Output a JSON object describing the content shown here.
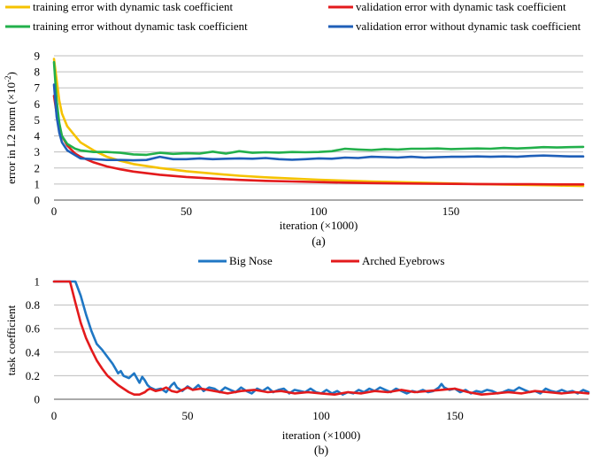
{
  "chart_data": [
    {
      "type": "line",
      "caption": "(a)",
      "xlabel": "iteration (×1000)",
      "ylabel": "error in L2 norm (×10",
      "ylabel_sup": "-2",
      "ylabel_close": ")",
      "xlim": [
        0,
        200
      ],
      "ylim": [
        0,
        9
      ],
      "xticks": [
        0,
        50,
        100,
        150
      ],
      "yticks": [
        0,
        1,
        2,
        3,
        4,
        5,
        6,
        7,
        8,
        9
      ],
      "grid": "horizontal",
      "legend_position": "top",
      "series": [
        {
          "name": "training error with dynamic task coefficient",
          "color": "#f5c200",
          "x": [
            0,
            1,
            2,
            3,
            5,
            8,
            10,
            15,
            20,
            25,
            30,
            40,
            50,
            60,
            70,
            80,
            90,
            100,
            110,
            120,
            130,
            140,
            150,
            160,
            170,
            180,
            190,
            200
          ],
          "y": [
            8.8,
            7.5,
            6.2,
            5.4,
            4.6,
            4.0,
            3.6,
            3.1,
            2.7,
            2.45,
            2.25,
            2.0,
            1.8,
            1.65,
            1.52,
            1.42,
            1.34,
            1.27,
            1.21,
            1.16,
            1.12,
            1.08,
            1.04,
            1.0,
            0.97,
            0.94,
            0.91,
            0.88
          ]
        },
        {
          "name": "validation error with dynamic task coefficient",
          "color": "#e31a1c",
          "x": [
            0,
            1,
            2,
            3,
            5,
            8,
            10,
            15,
            20,
            25,
            30,
            40,
            50,
            60,
            70,
            80,
            90,
            100,
            110,
            120,
            130,
            140,
            150,
            160,
            170,
            180,
            190,
            200
          ],
          "y": [
            6.5,
            5.4,
            4.6,
            4.0,
            3.4,
            2.9,
            2.7,
            2.35,
            2.1,
            1.92,
            1.78,
            1.58,
            1.44,
            1.34,
            1.26,
            1.2,
            1.16,
            1.12,
            1.09,
            1.06,
            1.04,
            1.02,
            1.01,
            1.0,
            0.99,
            0.99,
            0.98,
            0.98
          ]
        },
        {
          "name": "training error without dynamic task coefficient",
          "color": "#22b04b",
          "x": [
            0,
            1,
            2,
            3,
            5,
            8,
            10,
            15,
            20,
            25,
            30,
            35,
            40,
            45,
            50,
            55,
            60,
            65,
            70,
            75,
            80,
            85,
            90,
            95,
            100,
            105,
            110,
            115,
            120,
            125,
            130,
            135,
            140,
            145,
            150,
            155,
            160,
            165,
            170,
            175,
            180,
            185,
            190,
            195,
            200
          ],
          "y": [
            8.6,
            6.2,
            4.8,
            4.0,
            3.5,
            3.2,
            3.1,
            3.0,
            3.0,
            2.95,
            2.85,
            2.82,
            2.95,
            2.88,
            2.92,
            2.9,
            3.02,
            2.9,
            3.05,
            2.95,
            2.98,
            2.96,
            3.0,
            2.98,
            3.0,
            3.05,
            3.2,
            3.15,
            3.12,
            3.18,
            3.15,
            3.2,
            3.2,
            3.22,
            3.18,
            3.2,
            3.22,
            3.2,
            3.25,
            3.22,
            3.25,
            3.3,
            3.28,
            3.3,
            3.32
          ]
        },
        {
          "name": "validation error without dynamic task coefficient",
          "color": "#1f5fb8",
          "x": [
            0,
            1,
            2,
            3,
            5,
            8,
            10,
            15,
            20,
            25,
            30,
            35,
            40,
            45,
            50,
            55,
            60,
            65,
            70,
            75,
            80,
            85,
            90,
            95,
            100,
            105,
            110,
            115,
            120,
            125,
            130,
            135,
            140,
            145,
            150,
            155,
            160,
            165,
            170,
            175,
            180,
            185,
            190,
            195,
            200
          ],
          "y": [
            7.2,
            5.2,
            4.2,
            3.6,
            3.1,
            2.8,
            2.6,
            2.55,
            2.5,
            2.5,
            2.48,
            2.5,
            2.7,
            2.55,
            2.55,
            2.6,
            2.55,
            2.58,
            2.6,
            2.58,
            2.62,
            2.55,
            2.52,
            2.55,
            2.6,
            2.58,
            2.65,
            2.62,
            2.7,
            2.68,
            2.65,
            2.7,
            2.65,
            2.68,
            2.7,
            2.7,
            2.72,
            2.7,
            2.72,
            2.7,
            2.75,
            2.78,
            2.75,
            2.72,
            2.72
          ]
        }
      ]
    },
    {
      "type": "line",
      "caption": "(b)",
      "xlabel": "iteration (×1000)",
      "ylabel": "task coefficient",
      "xlim": [
        0,
        200
      ],
      "ylim": [
        0,
        1
      ],
      "xticks": [
        0,
        50,
        100,
        150
      ],
      "yticks": [
        0,
        0.2,
        0.4,
        0.6,
        0.8,
        1
      ],
      "ytick_labels": [
        "0",
        "0.2",
        "0.4",
        "0.6",
        "0.8",
        "1"
      ],
      "grid": "horizontal",
      "legend_position": "top",
      "series": [
        {
          "name": "Big Nose",
          "color": "#1f77c4",
          "x": [
            0,
            3,
            6,
            8,
            10,
            12,
            14,
            16,
            18,
            20,
            22,
            24,
            25,
            26,
            28,
            30,
            32,
            33,
            34,
            35,
            36,
            38,
            40,
            42,
            44,
            45,
            46,
            48,
            50,
            52,
            54,
            56,
            58,
            60,
            62,
            64,
            66,
            68,
            70,
            72,
            74,
            76,
            78,
            80,
            82,
            84,
            86,
            88,
            90,
            92,
            94,
            96,
            98,
            100,
            102,
            104,
            106,
            108,
            110,
            112,
            114,
            116,
            118,
            120,
            122,
            124,
            126,
            128,
            130,
            132,
            134,
            136,
            138,
            140,
            142,
            144,
            145,
            146,
            148,
            150,
            152,
            154,
            156,
            158,
            160,
            162,
            164,
            166,
            168,
            170,
            172,
            174,
            176,
            178,
            180,
            182,
            184,
            186,
            188,
            190,
            192,
            194,
            196,
            198,
            200
          ],
          "y": [
            1.0,
            1.0,
            1.0,
            1.0,
            0.88,
            0.72,
            0.58,
            0.47,
            0.42,
            0.36,
            0.3,
            0.22,
            0.24,
            0.2,
            0.18,
            0.22,
            0.14,
            0.19,
            0.16,
            0.12,
            0.1,
            0.08,
            0.09,
            0.06,
            0.12,
            0.14,
            0.1,
            0.07,
            0.11,
            0.08,
            0.12,
            0.07,
            0.1,
            0.09,
            0.06,
            0.1,
            0.08,
            0.06,
            0.1,
            0.07,
            0.05,
            0.09,
            0.07,
            0.1,
            0.06,
            0.08,
            0.09,
            0.05,
            0.08,
            0.07,
            0.06,
            0.09,
            0.06,
            0.05,
            0.08,
            0.05,
            0.07,
            0.04,
            0.06,
            0.05,
            0.08,
            0.06,
            0.09,
            0.07,
            0.1,
            0.08,
            0.06,
            0.09,
            0.07,
            0.05,
            0.07,
            0.06,
            0.08,
            0.06,
            0.07,
            0.1,
            0.13,
            0.1,
            0.08,
            0.09,
            0.06,
            0.08,
            0.05,
            0.07,
            0.06,
            0.08,
            0.07,
            0.05,
            0.06,
            0.08,
            0.07,
            0.1,
            0.08,
            0.06,
            0.07,
            0.05,
            0.09,
            0.07,
            0.06,
            0.08,
            0.06,
            0.07,
            0.05,
            0.08,
            0.06
          ]
        },
        {
          "name": "Arched Eyebrows",
          "color": "#e31a1c",
          "x": [
            0,
            4,
            6,
            8,
            10,
            12,
            14,
            16,
            18,
            20,
            22,
            24,
            26,
            28,
            30,
            32,
            34,
            35,
            36,
            38,
            40,
            42,
            44,
            46,
            48,
            50,
            52,
            55,
            60,
            65,
            70,
            75,
            80,
            85,
            90,
            95,
            100,
            105,
            110,
            115,
            120,
            125,
            130,
            135,
            140,
            145,
            150,
            155,
            160,
            165,
            170,
            175,
            180,
            185,
            190,
            195,
            200
          ],
          "y": [
            1.0,
            1.0,
            1.0,
            0.82,
            0.65,
            0.52,
            0.42,
            0.33,
            0.26,
            0.2,
            0.16,
            0.12,
            0.09,
            0.06,
            0.04,
            0.04,
            0.06,
            0.08,
            0.09,
            0.07,
            0.08,
            0.1,
            0.07,
            0.06,
            0.08,
            0.1,
            0.08,
            0.09,
            0.07,
            0.05,
            0.07,
            0.08,
            0.06,
            0.07,
            0.05,
            0.06,
            0.05,
            0.04,
            0.06,
            0.05,
            0.07,
            0.06,
            0.08,
            0.06,
            0.07,
            0.08,
            0.09,
            0.06,
            0.04,
            0.05,
            0.06,
            0.05,
            0.07,
            0.06,
            0.05,
            0.06,
            0.05
          ]
        }
      ]
    }
  ]
}
